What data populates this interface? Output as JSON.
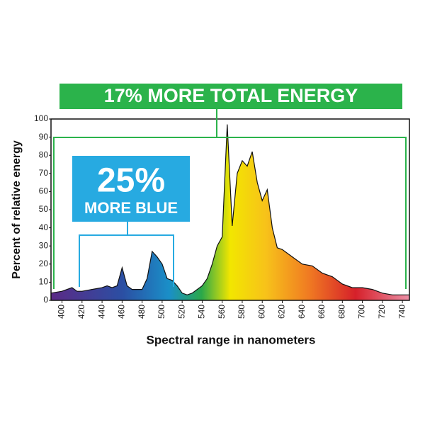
{
  "chart_data": {
    "type": "area",
    "title": "17% MORE TOTAL ENERGY",
    "annotation_big": "25%",
    "annotation_small": "MORE BLUE",
    "x_label": "Spectral range in nanometers",
    "y_label": "Percent of relative energy",
    "x": [
      389,
      400,
      410,
      415,
      420,
      430,
      440,
      445,
      450,
      455,
      460,
      465,
      470,
      480,
      485,
      490,
      495,
      500,
      505,
      510,
      515,
      520,
      525,
      530,
      540,
      545,
      550,
      555,
      560,
      565,
      570,
      575,
      580,
      585,
      590,
      595,
      600,
      605,
      610,
      615,
      620,
      630,
      640,
      650,
      660,
      670,
      680,
      690,
      700,
      710,
      720,
      730,
      740,
      747
    ],
    "values": [
      4,
      5,
      7,
      5,
      5,
      6,
      7,
      8,
      7,
      8,
      18,
      8,
      6,
      6,
      12,
      27,
      24,
      20,
      12,
      11,
      8,
      4,
      3,
      4,
      8,
      12,
      20,
      30,
      35,
      97,
      41,
      70,
      77,
      74,
      82,
      65,
      55,
      61,
      40,
      29,
      28,
      24,
      20,
      19,
      15,
      13,
      9,
      7,
      7,
      6,
      4,
      3,
      3,
      3
    ],
    "xlim": [
      389,
      747
    ],
    "ylim": [
      0,
      100
    ],
    "xticks": [
      400,
      420,
      440,
      460,
      480,
      500,
      520,
      540,
      560,
      580,
      600,
      620,
      640,
      660,
      680,
      700,
      720,
      740
    ],
    "yticks": [
      0,
      10,
      20,
      30,
      40,
      50,
      60,
      70,
      80,
      90,
      100
    ]
  }
}
